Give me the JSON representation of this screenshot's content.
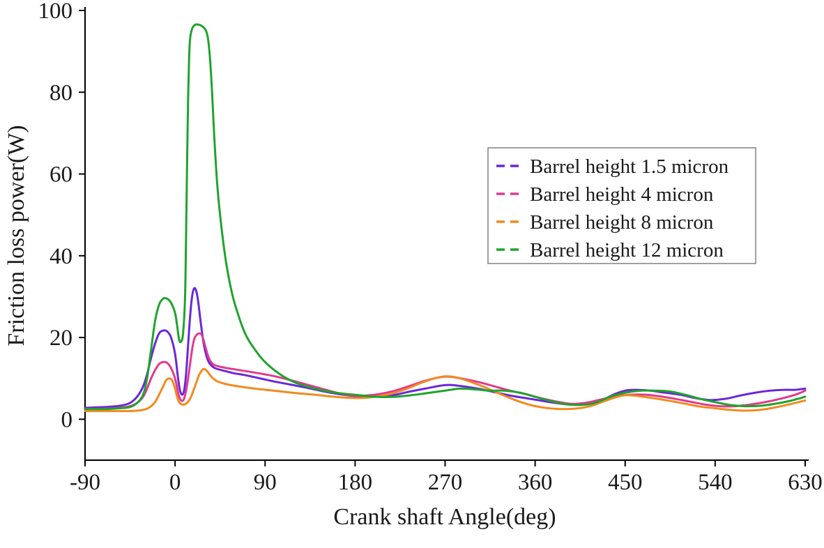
{
  "page": {
    "background": "#ffffff",
    "text_color": "#1a1a1a"
  },
  "chart_data": {
    "type": "line",
    "title": "",
    "xlabel": "Crank shaft Angle(deg)",
    "ylabel": "Friction loss power(W)",
    "xlim": [
      -90,
      630
    ],
    "ylim": [
      -10,
      100
    ],
    "x_ticks": [
      -90,
      0,
      90,
      180,
      270,
      360,
      450,
      540,
      630
    ],
    "y_ticks": [
      0,
      20,
      40,
      60,
      80,
      100
    ],
    "grid": false,
    "legend_position": "inside-middle-right",
    "legend_border_color": "#808080",
    "axis_color": "#000000",
    "series": [
      {
        "name": "Barrel height 1.5 micron",
        "color": "#6a28d9",
        "points": [
          [
            -90,
            2.8
          ],
          [
            -70,
            3
          ],
          [
            -55,
            3.3
          ],
          [
            -45,
            4
          ],
          [
            -38,
            5.5
          ],
          [
            -32,
            8
          ],
          [
            -28,
            11
          ],
          [
            -24,
            15
          ],
          [
            -20,
            18.5
          ],
          [
            -16,
            21
          ],
          [
            -12,
            21.7
          ],
          [
            -8,
            21.5
          ],
          [
            -4,
            20
          ],
          [
            0,
            16
          ],
          [
            3,
            10
          ],
          [
            5,
            7
          ],
          [
            7,
            6
          ],
          [
            9,
            7
          ],
          [
            11,
            11
          ],
          [
            13,
            18
          ],
          [
            15,
            25
          ],
          [
            17,
            30
          ],
          [
            19,
            32
          ],
          [
            21,
            31.5
          ],
          [
            23,
            29
          ],
          [
            26,
            23
          ],
          [
            29,
            18
          ],
          [
            32,
            15
          ],
          [
            35,
            13.5
          ],
          [
            40,
            12.5
          ],
          [
            50,
            11.8
          ],
          [
            60,
            11.2
          ],
          [
            70,
            10.8
          ],
          [
            85,
            10
          ],
          [
            100,
            9.2
          ],
          [
            115,
            8.5
          ],
          [
            130,
            7.8
          ],
          [
            145,
            7
          ],
          [
            160,
            6.3
          ],
          [
            175,
            5.8
          ],
          [
            190,
            5.5
          ],
          [
            205,
            5.6
          ],
          [
            220,
            6
          ],
          [
            235,
            6.8
          ],
          [
            250,
            7.5
          ],
          [
            265,
            8.2
          ],
          [
            275,
            8.4
          ],
          [
            290,
            8
          ],
          [
            305,
            7.4
          ],
          [
            320,
            6.6
          ],
          [
            335,
            5.8
          ],
          [
            350,
            5.2
          ],
          [
            365,
            4.6
          ],
          [
            380,
            4
          ],
          [
            395,
            3.6
          ],
          [
            410,
            3.7
          ],
          [
            425,
            4.5
          ],
          [
            440,
            6.2
          ],
          [
            450,
            7
          ],
          [
            460,
            7.2
          ],
          [
            475,
            7
          ],
          [
            490,
            6.5
          ],
          [
            505,
            6
          ],
          [
            520,
            5.2
          ],
          [
            535,
            4.7
          ],
          [
            550,
            5
          ],
          [
            565,
            5.8
          ],
          [
            580,
            6.5
          ],
          [
            595,
            7
          ],
          [
            610,
            7.2
          ],
          [
            620,
            7.2
          ],
          [
            630,
            7.5
          ]
        ]
      },
      {
        "name": "Barrel height 4 micron",
        "color": "#e23a8e",
        "points": [
          [
            -90,
            2.5
          ],
          [
            -70,
            2.6
          ],
          [
            -55,
            2.8
          ],
          [
            -45,
            3.2
          ],
          [
            -38,
            4
          ],
          [
            -32,
            5.5
          ],
          [
            -28,
            7.5
          ],
          [
            -24,
            10
          ],
          [
            -20,
            12
          ],
          [
            -16,
            13.5
          ],
          [
            -12,
            14
          ],
          [
            -8,
            13.8
          ],
          [
            -4,
            12.5
          ],
          [
            0,
            10
          ],
          [
            3,
            6.5
          ],
          [
            5,
            5
          ],
          [
            7,
            4.5
          ],
          [
            9,
            5
          ],
          [
            11,
            7
          ],
          [
            13,
            10
          ],
          [
            15,
            13.5
          ],
          [
            17,
            17
          ],
          [
            19,
            19.5
          ],
          [
            21,
            20.5
          ],
          [
            24,
            21
          ],
          [
            27,
            20.5
          ],
          [
            30,
            18
          ],
          [
            33,
            15.5
          ],
          [
            36,
            14
          ],
          [
            40,
            13.2
          ],
          [
            50,
            12.6
          ],
          [
            60,
            12.2
          ],
          [
            70,
            11.8
          ],
          [
            85,
            11.2
          ],
          [
            100,
            10.5
          ],
          [
            115,
            9.6
          ],
          [
            130,
            8.6
          ],
          [
            145,
            7.6
          ],
          [
            160,
            6.6
          ],
          [
            175,
            5.9
          ],
          [
            190,
            5.8
          ],
          [
            205,
            6.2
          ],
          [
            220,
            7
          ],
          [
            235,
            8.2
          ],
          [
            250,
            9.4
          ],
          [
            265,
            10.3
          ],
          [
            275,
            10.4
          ],
          [
            290,
            9.8
          ],
          [
            305,
            9
          ],
          [
            320,
            8
          ],
          [
            335,
            7
          ],
          [
            350,
            6.2
          ],
          [
            365,
            5.2
          ],
          [
            380,
            4.4
          ],
          [
            395,
            3.8
          ],
          [
            410,
            4
          ],
          [
            425,
            4.8
          ],
          [
            440,
            5.6
          ],
          [
            455,
            6
          ],
          [
            470,
            6
          ],
          [
            485,
            5.6
          ],
          [
            500,
            5
          ],
          [
            515,
            4.3
          ],
          [
            530,
            3.6
          ],
          [
            545,
            3.2
          ],
          [
            560,
            3.2
          ],
          [
            575,
            3.6
          ],
          [
            590,
            4.2
          ],
          [
            605,
            5
          ],
          [
            620,
            6
          ],
          [
            630,
            7
          ]
        ]
      },
      {
        "name": "Barrel height 8 micron",
        "color": "#f28a1f",
        "points": [
          [
            -90,
            2
          ],
          [
            -70,
            2
          ],
          [
            -55,
            2
          ],
          [
            -45,
            2
          ],
          [
            -38,
            2.1
          ],
          [
            -32,
            2.3
          ],
          [
            -28,
            2.6
          ],
          [
            -24,
            3.2
          ],
          [
            -20,
            4.2
          ],
          [
            -16,
            6
          ],
          [
            -12,
            8
          ],
          [
            -9,
            9.5
          ],
          [
            -6,
            10
          ],
          [
            -3,
            9.5
          ],
          [
            0,
            7.5
          ],
          [
            2,
            5.5
          ],
          [
            4,
            4.2
          ],
          [
            6,
            3.7
          ],
          [
            9,
            3.6
          ],
          [
            12,
            4
          ],
          [
            15,
            5
          ],
          [
            18,
            6.8
          ],
          [
            21,
            8.8
          ],
          [
            24,
            10.8
          ],
          [
            27,
            12
          ],
          [
            29,
            12.3
          ],
          [
            32,
            11.8
          ],
          [
            35,
            10.8
          ],
          [
            38,
            10
          ],
          [
            42,
            9.3
          ],
          [
            48,
            8.8
          ],
          [
            55,
            8.4
          ],
          [
            65,
            8
          ],
          [
            80,
            7.5
          ],
          [
            95,
            7.1
          ],
          [
            110,
            6.7
          ],
          [
            125,
            6.3
          ],
          [
            140,
            6
          ],
          [
            155,
            5.6
          ],
          [
            170,
            5.3
          ],
          [
            185,
            5.2
          ],
          [
            200,
            5.5
          ],
          [
            215,
            6.2
          ],
          [
            230,
            7.3
          ],
          [
            245,
            8.8
          ],
          [
            258,
            9.9
          ],
          [
            270,
            10.5
          ],
          [
            282,
            10.2
          ],
          [
            295,
            9.2
          ],
          [
            310,
            7.8
          ],
          [
            325,
            6.2
          ],
          [
            340,
            4.7
          ],
          [
            355,
            3.5
          ],
          [
            370,
            2.8
          ],
          [
            385,
            2.5
          ],
          [
            400,
            2.6
          ],
          [
            415,
            3.2
          ],
          [
            430,
            4.5
          ],
          [
            442,
            5.5
          ],
          [
            452,
            5.9
          ],
          [
            465,
            5.6
          ],
          [
            480,
            5.1
          ],
          [
            495,
            4.5
          ],
          [
            510,
            3.8
          ],
          [
            525,
            3.1
          ],
          [
            540,
            2.7
          ],
          [
            555,
            2.3
          ],
          [
            570,
            2.1
          ],
          [
            585,
            2.3
          ],
          [
            600,
            2.9
          ],
          [
            615,
            3.7
          ],
          [
            630,
            4.6
          ]
        ]
      },
      {
        "name": "Barrel height 12 micron",
        "color": "#1fa32c",
        "points": [
          [
            -90,
            2.5
          ],
          [
            -70,
            2.5
          ],
          [
            -55,
            2.7
          ],
          [
            -45,
            3
          ],
          [
            -38,
            4
          ],
          [
            -32,
            6
          ],
          [
            -28,
            10
          ],
          [
            -24,
            17
          ],
          [
            -20,
            24
          ],
          [
            -16,
            28
          ],
          [
            -12,
            29.5
          ],
          [
            -8,
            29.5
          ],
          [
            -4,
            28.5
          ],
          [
            0,
            26
          ],
          [
            2,
            23
          ],
          [
            4,
            19.5
          ],
          [
            6,
            19
          ],
          [
            8,
            21
          ],
          [
            10,
            30
          ],
          [
            11,
            45
          ],
          [
            12,
            62
          ],
          [
            13,
            78
          ],
          [
            14,
            88
          ],
          [
            15,
            93
          ],
          [
            17,
            95.5
          ],
          [
            20,
            96.5
          ],
          [
            24,
            96.5
          ],
          [
            28,
            96
          ],
          [
            31,
            95
          ],
          [
            33,
            93
          ],
          [
            35,
            88
          ],
          [
            37,
            80
          ],
          [
            39,
            70
          ],
          [
            42,
            58
          ],
          [
            45,
            50
          ],
          [
            50,
            40
          ],
          [
            55,
            33
          ],
          [
            60,
            28
          ],
          [
            70,
            21
          ],
          [
            80,
            17
          ],
          [
            90,
            14
          ],
          [
            105,
            11
          ],
          [
            120,
            9
          ],
          [
            140,
            7.5
          ],
          [
            160,
            6.5
          ],
          [
            180,
            6
          ],
          [
            200,
            5.5
          ],
          [
            220,
            5.5
          ],
          [
            240,
            6
          ],
          [
            255,
            6.5
          ],
          [
            270,
            7
          ],
          [
            285,
            7.5
          ],
          [
            300,
            7.3
          ],
          [
            315,
            7
          ],
          [
            330,
            7
          ],
          [
            345,
            6.5
          ],
          [
            360,
            5.5
          ],
          [
            375,
            4.5
          ],
          [
            390,
            3.7
          ],
          [
            405,
            3.5
          ],
          [
            420,
            4
          ],
          [
            435,
            5.5
          ],
          [
            450,
            6.5
          ],
          [
            465,
            7
          ],
          [
            480,
            7
          ],
          [
            495,
            6.8
          ],
          [
            510,
            6
          ],
          [
            525,
            5
          ],
          [
            540,
            4.2
          ],
          [
            555,
            3.5
          ],
          [
            570,
            3.2
          ],
          [
            585,
            3.3
          ],
          [
            600,
            3.8
          ],
          [
            615,
            4.5
          ],
          [
            630,
            5.5
          ]
        ]
      }
    ]
  }
}
